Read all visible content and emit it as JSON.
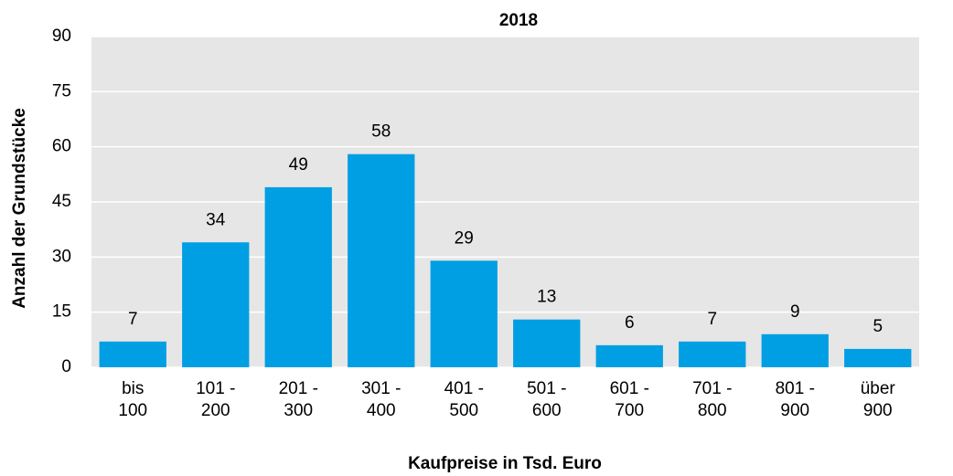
{
  "chart_data": {
    "type": "bar",
    "title": "2018",
    "x_label": "Kaufpreise in Tsd. Euro",
    "y_label": "Anzahl der Grundstücke",
    "categories": [
      "bis 100",
      "101 - 200",
      "201 - 300",
      "301 - 400",
      "401 - 500",
      "501 - 600",
      "601 - 700",
      "701 - 800",
      "801 - 900",
      "über 900"
    ],
    "values": [
      7,
      34,
      49,
      58,
      29,
      13,
      6,
      7,
      9,
      5
    ],
    "color": "#009fe3",
    "ylim": [
      0,
      90
    ],
    "yticks": [
      0,
      15,
      30,
      45,
      60,
      75,
      90
    ],
    "grid": true
  }
}
